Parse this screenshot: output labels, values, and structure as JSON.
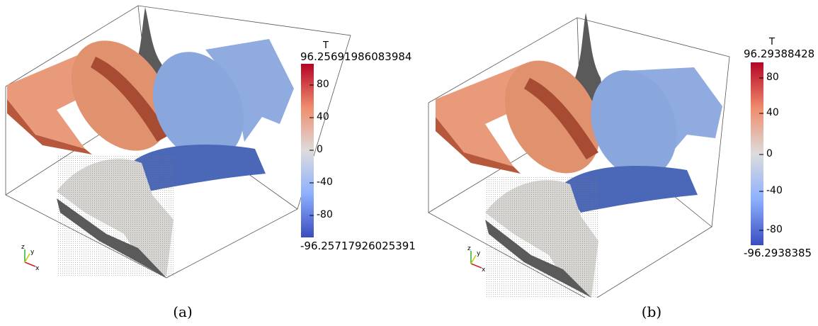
{
  "panels": [
    {
      "caption": "(a)",
      "colorbar": {
        "title": "T",
        "max_label": "96.25691986083984",
        "min_label": "-96.25717926025391",
        "ticks": [
          "80",
          "40",
          "0",
          "-40",
          "-80"
        ]
      },
      "axes_labels": {
        "x": "x",
        "y": "y",
        "z": "z"
      }
    },
    {
      "caption": "(b)",
      "colorbar": {
        "title": "T",
        "max_label": "96.29388428",
        "min_label": "-96.2938385",
        "ticks": [
          "80",
          "40",
          "0",
          "-40",
          "-80"
        ]
      },
      "axes_labels": {
        "x": "x",
        "y": "y",
        "z": "z"
      }
    }
  ],
  "colors": {
    "red": "#b40426",
    "orange": "#e89a7a",
    "white": "#dddcdc",
    "blue": "#8fabe0",
    "dark_blue": "#3b4cc0",
    "gray": "#5a5a5a"
  }
}
